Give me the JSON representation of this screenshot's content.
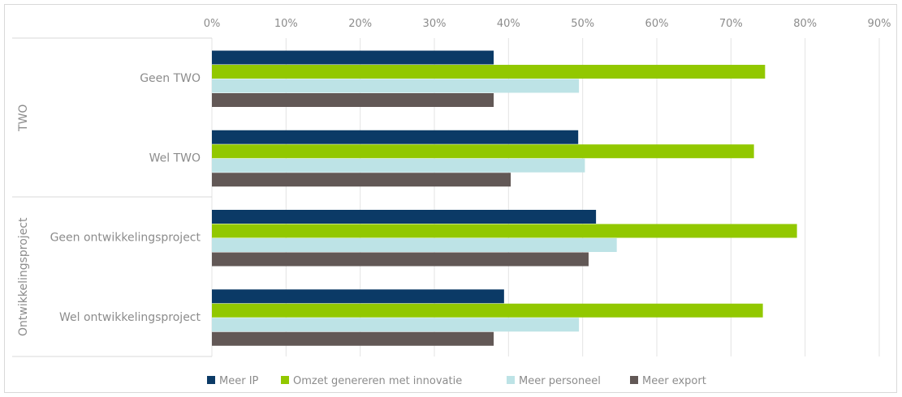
{
  "chart_data": {
    "type": "bar",
    "orientation": "horizontal",
    "x_ticks": [
      "0%",
      "10%",
      "20%",
      "30%",
      "40%",
      "50%",
      "60%",
      "70%",
      "80%",
      "90%"
    ],
    "xlim": [
      0,
      90
    ],
    "grid": true,
    "legend_position": "bottom",
    "groups": [
      {
        "label": "TWO",
        "categories": [
          "Geen TWO",
          "Wel TWO"
        ]
      },
      {
        "label": "Ontwikkelingsproject",
        "categories": [
          "Geen ontwikkelingsproject",
          "Wel ontwikkelingsproject"
        ]
      }
    ],
    "categories": [
      "Geen TWO",
      "Wel TWO",
      "Geen ontwikkelingsproject",
      "Wel ontwikkelingsproject"
    ],
    "series": [
      {
        "name": "Meer IP",
        "color": "#0b3a66",
        "values": [
          38,
          49.4,
          51.8,
          39.4
        ]
      },
      {
        "name": "Omzet genereren met innovatie",
        "color": "#92c800",
        "values": [
          74.6,
          73.1,
          78.9,
          74.3
        ]
      },
      {
        "name": "Meer personeel",
        "color": "#bde3e6",
        "values": [
          49.5,
          50.3,
          54.6,
          49.5
        ]
      },
      {
        "name": "Meer export",
        "color": "#625856",
        "values": [
          38,
          40.3,
          50.8,
          38
        ]
      }
    ]
  }
}
